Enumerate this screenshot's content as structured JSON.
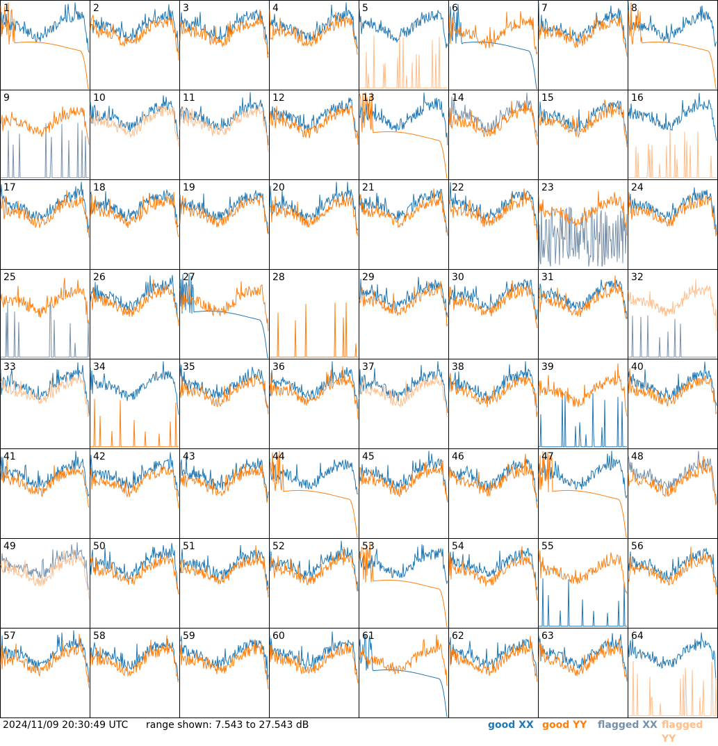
{
  "timestamp": "2024/11/09 20:30:49 UTC",
  "range_text": "range shown: 7.543 to 27.543 dB",
  "legend": {
    "good_xx": "good XX",
    "good_yy": "good YY",
    "flagged_xx": "flagged XX",
    "flagged_yy": "flagged YY"
  },
  "colors": {
    "good_xx": "#1f77b4",
    "good_yy": "#ff7f0e",
    "flagged_xx": "#7790aa",
    "flagged_yy": "#ffbe8a"
  },
  "chart_data": {
    "type": "line",
    "grid": "8x8 small multiples, one panel per antenna",
    "ylim": [
      7.543,
      27.543
    ],
    "yunit": "dB",
    "panels": [
      {
        "label": "1",
        "xx": "good",
        "yy": "good",
        "xx_shape": "normal",
        "yy_shape": "smooth_fall"
      },
      {
        "label": "2",
        "xx": "good",
        "yy": "good",
        "xx_shape": "normal",
        "yy_shape": "normal"
      },
      {
        "label": "3",
        "xx": "good",
        "yy": "good",
        "xx_shape": "normal",
        "yy_shape": "normal"
      },
      {
        "label": "4",
        "xx": "good",
        "yy": "good",
        "xx_shape": "normal",
        "yy_shape": "normal"
      },
      {
        "label": "5",
        "xx": "good",
        "yy": "flagged",
        "xx_shape": "normal",
        "yy_shape": "spikes"
      },
      {
        "label": "6",
        "xx": "good",
        "yy": "good",
        "xx_shape": "smooth_fall",
        "yy_shape": "normal"
      },
      {
        "label": "7",
        "xx": "good",
        "yy": "good",
        "xx_shape": "normal",
        "yy_shape": "normal"
      },
      {
        "label": "8",
        "xx": "good",
        "yy": "good",
        "xx_shape": "normal",
        "yy_shape": "smooth_fall"
      },
      {
        "label": "9",
        "xx": "flagged",
        "yy": "good",
        "xx_shape": "spikes",
        "yy_shape": "normal"
      },
      {
        "label": "10",
        "xx": "good",
        "yy": "flagged",
        "xx_shape": "normal",
        "yy_shape": "normal"
      },
      {
        "label": "11",
        "xx": "good",
        "yy": "flagged",
        "xx_shape": "normal",
        "yy_shape": "normal"
      },
      {
        "label": "12",
        "xx": "good",
        "yy": "good",
        "xx_shape": "normal",
        "yy_shape": "normal"
      },
      {
        "label": "13",
        "xx": "good",
        "yy": "good",
        "xx_shape": "normal",
        "yy_shape": "smooth_fall"
      },
      {
        "label": "14",
        "xx": "flagged",
        "yy": "good",
        "xx_shape": "normal",
        "yy_shape": "normal"
      },
      {
        "label": "15",
        "xx": "good",
        "yy": "good",
        "xx_shape": "normal",
        "yy_shape": "normal"
      },
      {
        "label": "16",
        "xx": "good",
        "yy": "flagged",
        "xx_shape": "normal",
        "yy_shape": "spikes"
      },
      {
        "label": "17",
        "xx": "good",
        "yy": "good",
        "xx_shape": "normal",
        "yy_shape": "normal"
      },
      {
        "label": "18",
        "xx": "good",
        "yy": "good",
        "xx_shape": "normal",
        "yy_shape": "normal"
      },
      {
        "label": "19",
        "xx": "good",
        "yy": "good",
        "xx_shape": "normal",
        "yy_shape": "normal"
      },
      {
        "label": "20",
        "xx": "good",
        "yy": "good",
        "xx_shape": "normal",
        "yy_shape": "normal"
      },
      {
        "label": "21",
        "xx": "good",
        "yy": "good",
        "xx_shape": "normal",
        "yy_shape": "normal"
      },
      {
        "label": "22",
        "xx": "good",
        "yy": "good",
        "xx_shape": "normal",
        "yy_shape": "normal"
      },
      {
        "label": "23",
        "xx": "flagged",
        "yy": "good",
        "xx_shape": "noisy",
        "yy_shape": "normal"
      },
      {
        "label": "24",
        "xx": "good",
        "yy": "good",
        "xx_shape": "normal",
        "yy_shape": "normal"
      },
      {
        "label": "25",
        "xx": "flagged",
        "yy": "good",
        "xx_shape": "spikes",
        "yy_shape": "normal"
      },
      {
        "label": "26",
        "xx": "good",
        "yy": "good",
        "xx_shape": "normal",
        "yy_shape": "normal"
      },
      {
        "label": "27",
        "xx": "good",
        "yy": "good",
        "xx_shape": "smooth_fall",
        "yy_shape": "normal"
      },
      {
        "label": "28",
        "xx": "none",
        "yy": "good",
        "xx_shape": "none",
        "yy_shape": "spikes"
      },
      {
        "label": "29",
        "xx": "good",
        "yy": "good",
        "xx_shape": "normal",
        "yy_shape": "normal"
      },
      {
        "label": "30",
        "xx": "good",
        "yy": "good",
        "xx_shape": "normal",
        "yy_shape": "normal"
      },
      {
        "label": "31",
        "xx": "good",
        "yy": "good",
        "xx_shape": "normal",
        "yy_shape": "normal"
      },
      {
        "label": "32",
        "xx": "flagged",
        "yy": "flagged",
        "xx_shape": "spikes",
        "yy_shape": "normal"
      },
      {
        "label": "33",
        "xx": "good",
        "yy": "flagged",
        "xx_shape": "normal",
        "yy_shape": "normal"
      },
      {
        "label": "34",
        "xx": "good",
        "yy": "good",
        "xx_shape": "normal",
        "yy_shape": "spikes"
      },
      {
        "label": "35",
        "xx": "good",
        "yy": "good",
        "xx_shape": "normal",
        "yy_shape": "normal"
      },
      {
        "label": "36",
        "xx": "good",
        "yy": "good",
        "xx_shape": "normal",
        "yy_shape": "normal"
      },
      {
        "label": "37",
        "xx": "good",
        "yy": "flagged",
        "xx_shape": "normal",
        "yy_shape": "normal"
      },
      {
        "label": "38",
        "xx": "good",
        "yy": "good",
        "xx_shape": "normal",
        "yy_shape": "normal"
      },
      {
        "label": "39",
        "xx": "good",
        "yy": "good",
        "xx_shape": "spikes",
        "yy_shape": "normal"
      },
      {
        "label": "40",
        "xx": "good",
        "yy": "good",
        "xx_shape": "normal",
        "yy_shape": "normal"
      },
      {
        "label": "41",
        "xx": "good",
        "yy": "good",
        "xx_shape": "normal",
        "yy_shape": "normal"
      },
      {
        "label": "42",
        "xx": "good",
        "yy": "good",
        "xx_shape": "normal",
        "yy_shape": "normal"
      },
      {
        "label": "43",
        "xx": "good",
        "yy": "good",
        "xx_shape": "normal",
        "yy_shape": "normal"
      },
      {
        "label": "44",
        "xx": "good",
        "yy": "good",
        "xx_shape": "normal",
        "yy_shape": "smooth_fall"
      },
      {
        "label": "45",
        "xx": "good",
        "yy": "good",
        "xx_shape": "normal",
        "yy_shape": "normal"
      },
      {
        "label": "46",
        "xx": "good",
        "yy": "good",
        "xx_shape": "normal",
        "yy_shape": "normal"
      },
      {
        "label": "47",
        "xx": "good",
        "yy": "good",
        "xx_shape": "normal",
        "yy_shape": "smooth_fall"
      },
      {
        "label": "48",
        "xx": "flagged",
        "yy": "good",
        "xx_shape": "normal",
        "yy_shape": "normal"
      },
      {
        "label": "49",
        "xx": "flagged",
        "yy": "flagged",
        "xx_shape": "normal",
        "yy_shape": "normal"
      },
      {
        "label": "50",
        "xx": "good",
        "yy": "good",
        "xx_shape": "normal",
        "yy_shape": "normal"
      },
      {
        "label": "51",
        "xx": "good",
        "yy": "good",
        "xx_shape": "normal",
        "yy_shape": "normal"
      },
      {
        "label": "52",
        "xx": "good",
        "yy": "good",
        "xx_shape": "normal",
        "yy_shape": "normal"
      },
      {
        "label": "53",
        "xx": "good",
        "yy": "good",
        "xx_shape": "normal",
        "yy_shape": "smooth_fall"
      },
      {
        "label": "54",
        "xx": "good",
        "yy": "good",
        "xx_shape": "normal",
        "yy_shape": "normal"
      },
      {
        "label": "55",
        "xx": "good",
        "yy": "good",
        "xx_shape": "spikes",
        "yy_shape": "normal"
      },
      {
        "label": "56",
        "xx": "good",
        "yy": "good",
        "xx_shape": "normal",
        "yy_shape": "normal"
      },
      {
        "label": "57",
        "xx": "good",
        "yy": "good",
        "xx_shape": "normal",
        "yy_shape": "normal"
      },
      {
        "label": "58",
        "xx": "good",
        "yy": "good",
        "xx_shape": "normal",
        "yy_shape": "normal"
      },
      {
        "label": "59",
        "xx": "good",
        "yy": "good",
        "xx_shape": "normal",
        "yy_shape": "normal"
      },
      {
        "label": "60",
        "xx": "good",
        "yy": "good",
        "xx_shape": "normal",
        "yy_shape": "normal"
      },
      {
        "label": "61",
        "xx": "good",
        "yy": "good",
        "xx_shape": "smooth_fall",
        "yy_shape": "normal"
      },
      {
        "label": "62",
        "xx": "good",
        "yy": "good",
        "xx_shape": "normal",
        "yy_shape": "normal"
      },
      {
        "label": "63",
        "xx": "good",
        "yy": "good",
        "xx_shape": "normal",
        "yy_shape": "normal"
      },
      {
        "label": "64",
        "xx": "good",
        "yy": "flagged",
        "xx_shape": "normal",
        "yy_shape": "spikes"
      }
    ]
  }
}
